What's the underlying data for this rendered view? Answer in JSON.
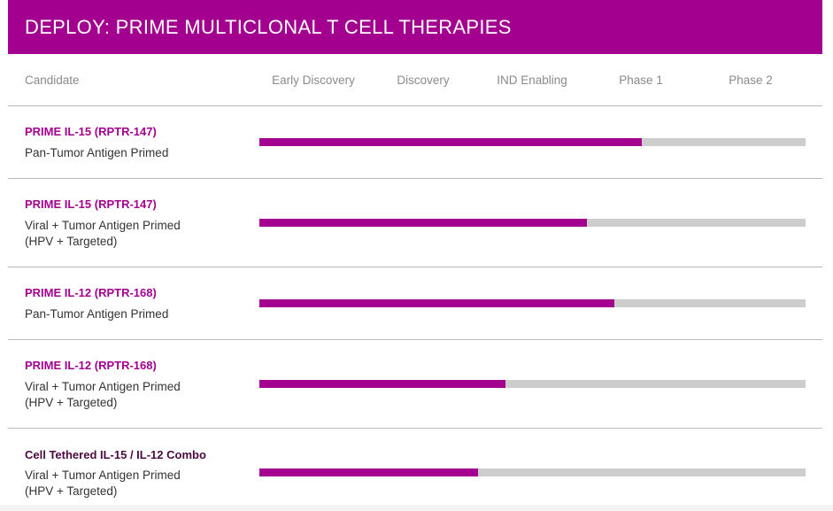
{
  "title": "DEPLOY: PRIME MULTICLONAL T CELL THERAPIES",
  "columns": {
    "candidate": "Candidate",
    "stages": [
      "Early Discovery",
      "Discovery",
      "IND Enabling",
      "Phase 1",
      "Phase 2"
    ]
  },
  "colors": {
    "accent": "#a3008f",
    "track": "#cdcdcd",
    "title_dark": "#4a0a40"
  },
  "chart_data": {
    "type": "bar",
    "orientation": "horizontal",
    "xlabel": "",
    "ylabel": "",
    "stage_axis": [
      "Early Discovery",
      "Discovery",
      "IND Enabling",
      "Phase 1",
      "Phase 2"
    ],
    "xlim": [
      0,
      5
    ],
    "grid": false,
    "categories": [
      "PRIME IL-15 (RPTR-147) | Pan-Tumor Antigen Primed",
      "PRIME IL-15 (RPTR-147) | Viral + Tumor Antigen Primed (HPV + Targeted)",
      "PRIME IL-12 (RPTR-168) | Pan-Tumor Antigen Primed",
      "PRIME IL-12 (RPTR-168) | Viral + Tumor Antigen Primed (HPV + Targeted)",
      "Cell Tethered IL-15 / IL-12 Combo | Viral + Tumor Antigen Primed (HPV + Targeted)"
    ],
    "values": [
      3.5,
      3.0,
      3.25,
      2.25,
      2.0
    ]
  },
  "rows": [
    {
      "title": "PRIME IL-15 (RPTR-147)",
      "subtitle": [
        "Pan-Tumor Antigen Primed"
      ],
      "progress": 3.5
    },
    {
      "title": "PRIME IL-15 (RPTR-147)",
      "subtitle": [
        "Viral + Tumor Antigen Primed",
        "(HPV + Targeted)"
      ],
      "progress": 3.0
    },
    {
      "title": "PRIME IL-12 (RPTR-168)",
      "subtitle": [
        "Pan-Tumor Antigen Primed"
      ],
      "progress": 3.25
    },
    {
      "title": "PRIME IL-12 (RPTR-168)",
      "subtitle": [
        "Viral + Tumor Antigen Primed",
        "(HPV + Targeted)"
      ],
      "progress": 2.25
    },
    {
      "title": "Cell Tethered IL-15 / IL-12 Combo",
      "subtitle": [
        "Viral + Tumor Antigen Primed",
        "(HPV + Targeted)"
      ],
      "progress": 2.0
    }
  ]
}
